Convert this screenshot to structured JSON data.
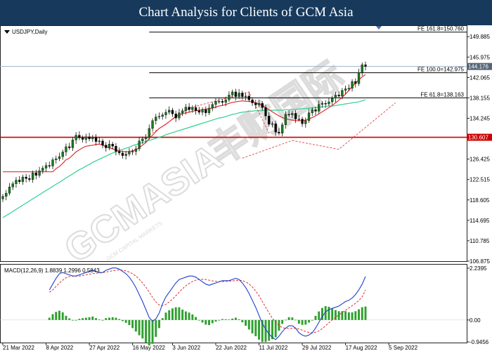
{
  "page": {
    "title": "Chart Analysis for Clients of GCM Asia"
  },
  "watermark": {
    "main": "GCMASIA",
    "cjk": "丰财国际",
    "sub": "GCM CAPITAL MARKETS"
  },
  "colors": {
    "title_bg": "#173a5c",
    "bull": "#1a7a1a",
    "bear": "#000000",
    "ma_fast": "#e03030",
    "ma_slow": "#2fd08f",
    "support": "#cc0000",
    "macd_line": "#1f3fd0",
    "signal_line": "#e03030",
    "histogram": "#2ea02e"
  },
  "chart_data": [
    {
      "type": "candlestick",
      "symbol_label": "USDJPY,Daily",
      "y_ticks": [
        "149.885",
        "145.975",
        "142.065",
        "138.155",
        "134.245",
        "130.335",
        "126.425",
        "122.515",
        "118.605",
        "114.695",
        "110.785",
        "106.875"
      ],
      "ylim": [
        106.875,
        151.8
      ],
      "x_ticks": [
        "21 Mar 2022",
        "8 Apr 2022",
        "27 Apr 2022",
        "16 May 2022",
        "3 Jun 2022",
        "22 Jun 2022",
        "11 Jul 2022",
        "29 Jul 2022",
        "17 Aug 2022",
        "5 Sep 2022"
      ],
      "x_tick_index": [
        0,
        13,
        26,
        39,
        51,
        64,
        77,
        90,
        103,
        116
      ],
      "current_price": {
        "value": 144.176,
        "label": "144.176"
      },
      "support": {
        "value": 130.607,
        "label": "130.607"
      },
      "fib_levels": [
        {
          "label": "FE 161.8=150.760",
          "value": 150.76,
          "start_index": 44
        },
        {
          "label": "FE 100.0=142.975",
          "value": 142.975,
          "start_index": 44
        },
        {
          "label": "FE 61.8=138.163",
          "value": 138.163,
          "start_index": 44
        }
      ],
      "close": [
        119.3,
        119.9,
        121.1,
        121.7,
        122.4,
        122.1,
        123.0,
        122.7,
        122.5,
        123.8,
        123.3,
        124.2,
        124.7,
        125.2,
        125.1,
        126.3,
        126.5,
        126.9,
        127.8,
        128.8,
        128.6,
        130.1,
        131.0,
        130.5,
        130.2,
        130.7,
        130.3,
        130.6,
        129.8,
        129.9,
        129.1,
        128.6,
        129.3,
        128.9,
        127.9,
        127.6,
        127.1,
        127.4,
        127.8,
        127.9,
        128.4,
        129.9,
        130.3,
        130.6,
        132.3,
        133.8,
        134.5,
        134.6,
        134.9,
        135.4,
        135.8,
        135.1,
        134.3,
        135.3,
        135.7,
        136.4,
        135.9,
        136.3,
        135.7,
        135.4,
        135.9,
        135.3,
        136.2,
        136.9,
        137.5,
        137.5,
        137.3,
        137.8,
        138.7,
        139.3,
        138.4,
        139.1,
        138.4,
        138.5,
        137.8,
        137.2,
        136.8,
        137.1,
        136.3,
        134.7,
        133.1,
        133.2,
        131.6,
        131.4,
        133.0,
        135.0,
        134.9,
        135.2,
        134.1,
        134.1,
        133.2,
        133.8,
        135.3,
        135.9,
        135.6,
        136.9,
        137.1,
        137.0,
        137.4,
        138.1,
        138.7,
        138.5,
        139.6,
        139.9,
        140.0,
        141.3,
        140.9,
        143.0,
        144.5,
        144.18
      ],
      "ma_fast": [
        124.0,
        124.0,
        124.0,
        124.0,
        124.0,
        124.0,
        124.0,
        124.0,
        124.0,
        124.0,
        124.0,
        124.0,
        124.0,
        124.0,
        124.0,
        124.0,
        124.6,
        125.0,
        125.6,
        126.3,
        126.6,
        127.2,
        127.8,
        128.2,
        128.6,
        128.9,
        129.0,
        129.1,
        129.2,
        129.3,
        129.1,
        128.8,
        128.6,
        128.4,
        128.2,
        128.0,
        127.9,
        127.8,
        127.9,
        128.0,
        128.2,
        128.6,
        129.1,
        129.6,
        130.4,
        131.0,
        131.7,
        132.3,
        132.7,
        133.1,
        133.6,
        134.1,
        134.6,
        134.9,
        135.1,
        135.3,
        135.4,
        135.6,
        135.7,
        135.8,
        135.9,
        136.0,
        136.1,
        136.2,
        136.4,
        136.6,
        136.7,
        136.9,
        137.1,
        137.3,
        137.4,
        137.5,
        137.6,
        137.5,
        137.5,
        137.4,
        137.2,
        137.0,
        136.7,
        136.3,
        135.9,
        135.5,
        135.1,
        134.7,
        134.4,
        134.2,
        134.0,
        133.9,
        133.8,
        133.8,
        133.8,
        133.9,
        134.1,
        134.4,
        134.7,
        135.1,
        135.5,
        135.9,
        136.3,
        136.7,
        137.2,
        137.7,
        138.3,
        138.9,
        139.6,
        140.3,
        141.0,
        141.6,
        142.2,
        142.6
      ],
      "ma_slow": [
        115.2,
        115.6,
        116.0,
        116.4,
        116.8,
        117.2,
        117.6,
        118.0,
        118.4,
        118.8,
        119.2,
        119.6,
        120.0,
        120.4,
        120.8,
        121.2,
        121.6,
        122.0,
        122.4,
        122.8,
        123.2,
        123.6,
        124.0,
        124.4,
        124.7,
        125.1,
        125.4,
        125.8,
        126.1,
        126.4,
        126.7,
        127.0,
        127.3,
        127.6,
        127.8,
        128.1,
        128.3,
        128.5,
        128.7,
        129.0,
        129.2,
        129.4,
        129.6,
        129.8,
        130.0,
        130.2,
        130.4,
        130.6,
        130.8,
        131.1,
        131.3,
        131.5,
        131.7,
        131.9,
        132.1,
        132.3,
        132.5,
        132.7,
        132.9,
        133.1,
        133.3,
        133.5,
        133.7,
        133.9,
        134.1,
        134.3,
        134.4,
        134.6,
        134.8,
        135.0,
        135.1,
        135.3,
        135.4,
        135.5,
        135.6,
        135.6,
        135.7,
        135.7,
        135.7,
        135.8,
        135.8,
        135.8,
        135.8,
        135.8,
        135.8,
        135.9,
        135.9,
        135.9,
        136.0,
        136.0,
        136.1,
        136.1,
        136.2,
        136.2,
        136.3,
        136.4,
        136.4,
        136.5,
        136.6,
        136.6,
        136.7,
        136.8,
        136.9,
        137.0,
        137.1,
        137.2,
        137.3,
        137.4,
        137.6,
        137.8
      ],
      "annotations": [
        {
          "type": "dashed-path",
          "points": [
            [
              72,
              126.6
            ],
            [
              87,
              130.0
            ],
            [
              101,
              128.3
            ],
            [
              118,
              137.2
            ]
          ]
        },
        {
          "type": "dashed-path",
          "points": [
            [
              44,
              131.0
            ],
            [
              56,
              136.2
            ],
            [
              74,
              139.3
            ],
            [
              80,
              131.4
            ]
          ]
        }
      ],
      "arrow": {
        "index": 113,
        "label": ""
      }
    },
    {
      "type": "macd",
      "label": "MACD(12,26,9) 1.8839 1.2996 0.5843",
      "params": "12,26,9",
      "values": {
        "macd": 1.8839,
        "signal": 1.2996,
        "histogram": 0.5843
      },
      "y_ticks": [
        "2.2395",
        "0.00",
        "-0.9456"
      ],
      "ylim": [
        -0.9456,
        2.2395
      ],
      "macd": [
        1.3,
        1.55,
        1.8,
        2.0,
        2.05,
        2.0,
        1.95,
        1.9,
        1.9,
        1.95,
        2.0,
        2.05,
        2.1,
        2.15,
        2.1,
        2.05,
        2.05,
        2.15,
        2.2,
        2.25,
        2.25,
        2.2,
        2.1,
        2.0,
        1.85,
        1.65,
        1.4,
        1.1,
        0.8,
        0.45,
        0.1,
        -0.05,
        0.05,
        0.3,
        0.7,
        1.0,
        1.2,
        1.4,
        1.6,
        1.75,
        1.8,
        1.85,
        1.9,
        1.9,
        1.85,
        1.75,
        1.65,
        1.55,
        1.5,
        1.55,
        1.6,
        1.65,
        1.7,
        1.7,
        1.7,
        1.75,
        1.8,
        1.75,
        1.6,
        1.4,
        1.15,
        0.85,
        0.55,
        0.2,
        -0.15,
        -0.4,
        -0.6,
        -0.75,
        -0.85,
        -0.7,
        -0.5,
        -0.35,
        -0.25,
        -0.25,
        -0.35,
        -0.55,
        -0.65,
        -0.7,
        -0.65,
        -0.55,
        -0.35,
        -0.1,
        0.15,
        0.35,
        0.45,
        0.5,
        0.55,
        0.6,
        0.7,
        0.8,
        0.85,
        0.95,
        1.1,
        1.3,
        1.55,
        1.88
      ],
      "signal": [
        1.2,
        1.3,
        1.45,
        1.6,
        1.72,
        1.82,
        1.88,
        1.9,
        1.9,
        1.9,
        1.92,
        1.95,
        1.98,
        2.0,
        2.02,
        2.03,
        2.05,
        2.07,
        2.1,
        2.13,
        2.15,
        2.16,
        2.15,
        2.12,
        2.07,
        2.0,
        1.9,
        1.76,
        1.6,
        1.42,
        1.2,
        0.98,
        0.78,
        0.65,
        0.62,
        0.68,
        0.78,
        0.9,
        1.05,
        1.2,
        1.35,
        1.48,
        1.58,
        1.66,
        1.72,
        1.75,
        1.76,
        1.75,
        1.72,
        1.69,
        1.67,
        1.66,
        1.66,
        1.67,
        1.68,
        1.69,
        1.7,
        1.72,
        1.7,
        1.65,
        1.56,
        1.43,
        1.25,
        1.05,
        0.8,
        0.55,
        0.3,
        0.08,
        -0.1,
        -0.24,
        -0.33,
        -0.36,
        -0.37,
        -0.36,
        -0.36,
        -0.39,
        -0.44,
        -0.5,
        -0.54,
        -0.55,
        -0.53,
        -0.47,
        -0.37,
        -0.25,
        -0.12,
        0.0,
        0.12,
        0.22,
        0.32,
        0.42,
        0.52,
        0.62,
        0.72,
        0.84,
        1.0,
        1.3
      ]
    }
  ]
}
